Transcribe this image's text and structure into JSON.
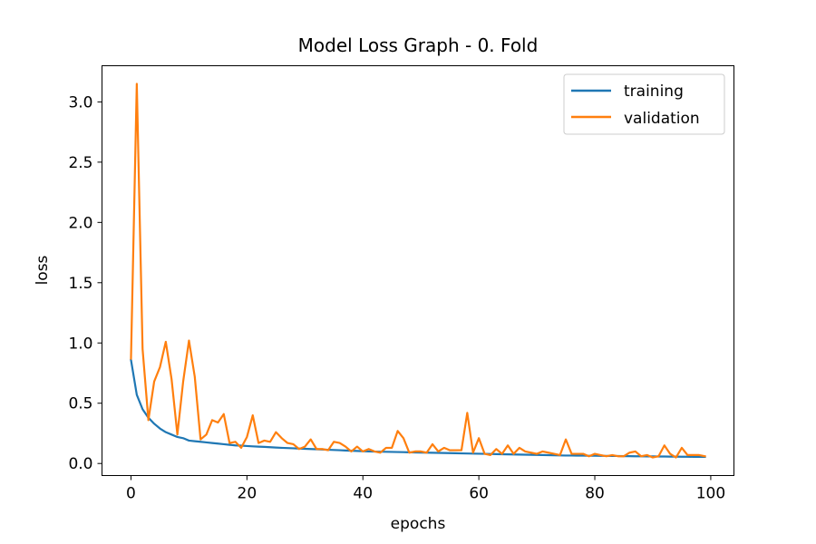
{
  "chart_data": {
    "type": "line",
    "title": "Model Loss Graph - 0. Fold",
    "xlabel": "epochs",
    "ylabel": "loss",
    "xlim": [
      -5,
      104
    ],
    "ylim": [
      -0.1,
      3.3
    ],
    "xticks": [
      0,
      20,
      40,
      60,
      80,
      100
    ],
    "yticks": [
      0.0,
      0.5,
      1.0,
      1.5,
      2.0,
      2.5,
      3.0
    ],
    "ytick_labels": [
      "0.0",
      "0.5",
      "1.0",
      "1.5",
      "2.0",
      "2.5",
      "3.0"
    ],
    "legend_position": "top-right",
    "x": [
      0,
      1,
      2,
      3,
      4,
      5,
      6,
      7,
      8,
      9,
      10,
      11,
      12,
      13,
      14,
      15,
      16,
      17,
      18,
      19,
      20,
      21,
      22,
      23,
      24,
      25,
      26,
      27,
      28,
      29,
      30,
      31,
      32,
      33,
      34,
      35,
      36,
      37,
      38,
      39,
      40,
      41,
      42,
      43,
      44,
      45,
      46,
      47,
      48,
      49,
      50,
      51,
      52,
      53,
      54,
      55,
      56,
      57,
      58,
      59,
      60,
      61,
      62,
      63,
      64,
      65,
      66,
      67,
      68,
      69,
      70,
      71,
      72,
      73,
      74,
      75,
      76,
      77,
      78,
      79,
      80,
      81,
      82,
      83,
      84,
      85,
      86,
      87,
      88,
      89,
      90,
      91,
      92,
      93,
      94,
      95,
      96,
      97,
      98,
      99
    ],
    "series": [
      {
        "name": "training",
        "color": "#1f77b4",
        "values": [
          0.86,
          0.57,
          0.45,
          0.38,
          0.33,
          0.29,
          0.26,
          0.24,
          0.22,
          0.21,
          0.19,
          0.185,
          0.18,
          0.175,
          0.17,
          0.165,
          0.16,
          0.155,
          0.15,
          0.148,
          0.145,
          0.142,
          0.14,
          0.138,
          0.135,
          0.132,
          0.13,
          0.128,
          0.126,
          0.124,
          0.122,
          0.12,
          0.118,
          0.116,
          0.114,
          0.112,
          0.11,
          0.108,
          0.106,
          0.104,
          0.102,
          0.1,
          0.099,
          0.098,
          0.097,
          0.096,
          0.095,
          0.094,
          0.093,
          0.092,
          0.091,
          0.09,
          0.089,
          0.088,
          0.087,
          0.086,
          0.085,
          0.084,
          0.083,
          0.082,
          0.081,
          0.08,
          0.079,
          0.078,
          0.077,
          0.076,
          0.075,
          0.074,
          0.073,
          0.072,
          0.071,
          0.07,
          0.069,
          0.068,
          0.067,
          0.066,
          0.066,
          0.065,
          0.065,
          0.064,
          0.064,
          0.063,
          0.063,
          0.062,
          0.062,
          0.061,
          0.061,
          0.06,
          0.06,
          0.059,
          0.059,
          0.058,
          0.058,
          0.057,
          0.057,
          0.056,
          0.056,
          0.055,
          0.055,
          0.055
        ]
      },
      {
        "name": "validation",
        "color": "#ff7f0e",
        "values": [
          0.87,
          3.15,
          0.95,
          0.36,
          0.68,
          0.8,
          1.01,
          0.7,
          0.24,
          0.68,
          1.02,
          0.72,
          0.2,
          0.24,
          0.36,
          0.34,
          0.41,
          0.17,
          0.18,
          0.13,
          0.22,
          0.4,
          0.17,
          0.19,
          0.18,
          0.26,
          0.21,
          0.17,
          0.16,
          0.12,
          0.14,
          0.2,
          0.12,
          0.12,
          0.11,
          0.18,
          0.17,
          0.14,
          0.1,
          0.14,
          0.1,
          0.12,
          0.1,
          0.09,
          0.13,
          0.13,
          0.27,
          0.21,
          0.09,
          0.1,
          0.1,
          0.09,
          0.16,
          0.1,
          0.13,
          0.11,
          0.11,
          0.11,
          0.42,
          0.09,
          0.21,
          0.08,
          0.07,
          0.12,
          0.08,
          0.15,
          0.08,
          0.13,
          0.1,
          0.09,
          0.08,
          0.1,
          0.09,
          0.08,
          0.07,
          0.2,
          0.08,
          0.08,
          0.08,
          0.06,
          0.08,
          0.07,
          0.06,
          0.07,
          0.06,
          0.06,
          0.09,
          0.1,
          0.06,
          0.07,
          0.05,
          0.06,
          0.15,
          0.08,
          0.05,
          0.13,
          0.07,
          0.07,
          0.07,
          0.06
        ]
      }
    ]
  }
}
